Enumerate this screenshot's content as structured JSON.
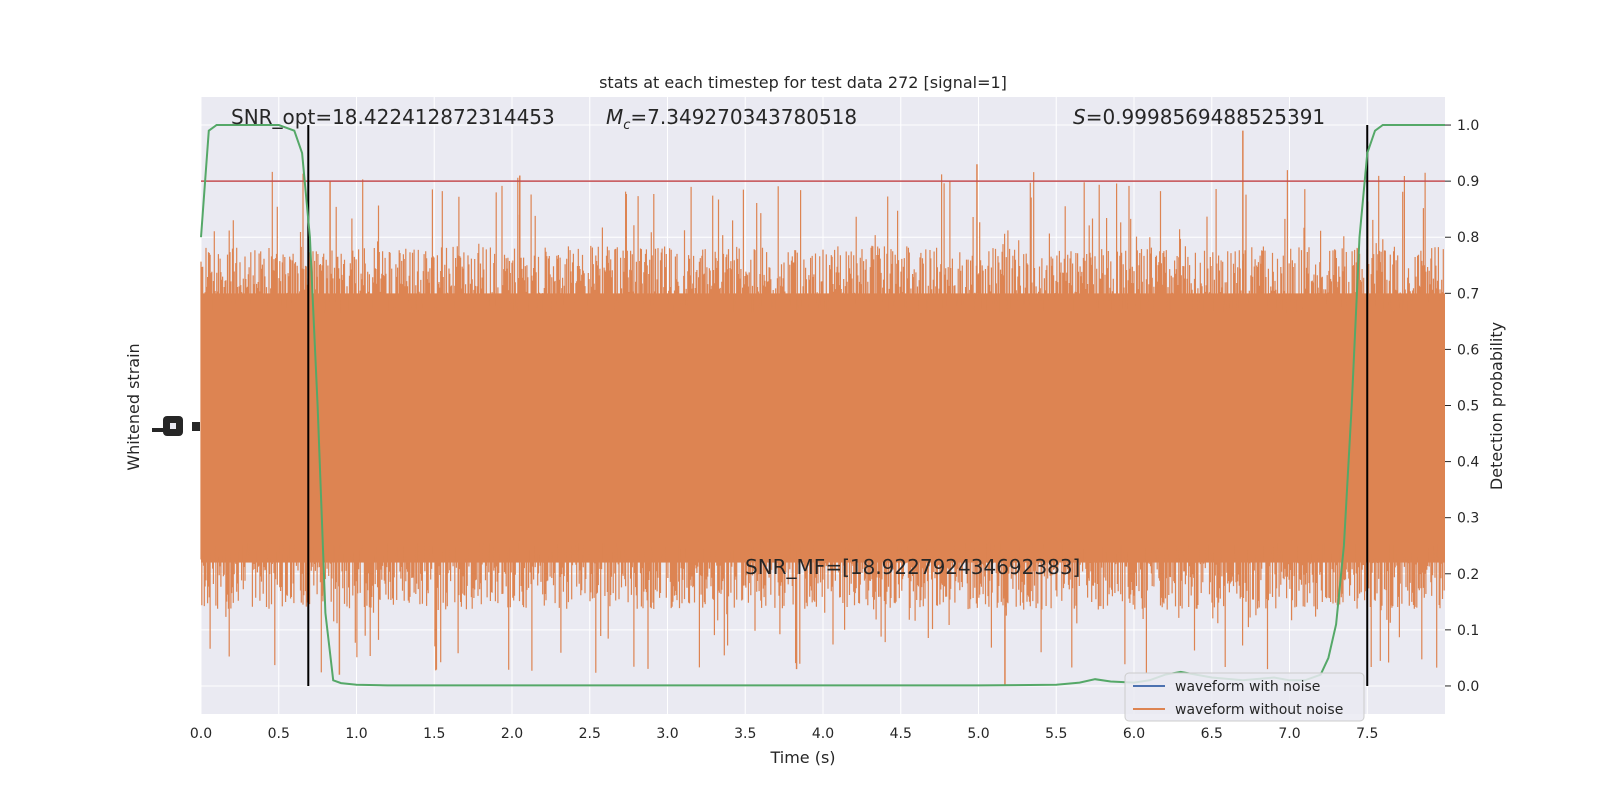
{
  "chart_data": {
    "type": "line",
    "title": "stats at each timestep for test data 272 [signal=1]",
    "xlabel": "Time (s)",
    "ylabel_left": "Whitened strain",
    "ylabel_right": "Detection probability",
    "xlim": [
      0.0,
      8.0
    ],
    "xticks": [
      0.0,
      0.5,
      1.0,
      1.5,
      2.0,
      2.5,
      3.0,
      3.5,
      4.0,
      4.5,
      5.0,
      5.5,
      6.0,
      6.5,
      7.0,
      7.5
    ],
    "xtick_labels": [
      "0.0",
      "0.5",
      "1.0",
      "1.5",
      "2.0",
      "2.5",
      "3.0",
      "3.5",
      "4.0",
      "4.5",
      "5.0",
      "5.5",
      "6.0",
      "6.5",
      "7.0",
      "7.5"
    ],
    "ylim_right": [
      -0.05,
      1.05
    ],
    "yticks_right": [
      0.0,
      0.1,
      0.2,
      0.3,
      0.4,
      0.5,
      0.6,
      0.7,
      0.8,
      0.9,
      1.0
    ],
    "ytick_labels_right": [
      "0.0",
      "0.1",
      "0.2",
      "0.3",
      "0.4",
      "0.5",
      "0.6",
      "0.7",
      "0.8",
      "0.9",
      "1.0"
    ],
    "grid": true,
    "threshold": {
      "value": 0.9,
      "color": "#c44e52"
    },
    "vertical_markers": [
      {
        "x": 0.69,
        "color": "#000000"
      },
      {
        "x": 7.5,
        "color": "#000000"
      }
    ],
    "annotations": {
      "snr_opt": "SNR_opt=18.422412872314453",
      "mc_symbol": "M",
      "mc_sub": "c",
      "mc_value": "=7.349270343780518",
      "s_symbol": "S",
      "s_value": "=0.9998569488525391",
      "snr_mf": "SNR_MF=[18.922792434692383]"
    },
    "series": [
      {
        "name": "waveform with noise",
        "color": "#4c72b0",
        "style": "noise-band"
      },
      {
        "name": "waveform without noise",
        "color": "#dd8452",
        "style": "noise-band",
        "band_center": 0.46,
        "band_half_width": 0.24,
        "spike_max": 0.99,
        "spike_min": 0.0
      },
      {
        "name": "detection probability",
        "color": "#55a868",
        "style": "line",
        "x": [
          0.0,
          0.05,
          0.1,
          0.2,
          0.3,
          0.4,
          0.5,
          0.6,
          0.65,
          0.7,
          0.75,
          0.8,
          0.85,
          0.9,
          1.0,
          1.2,
          1.5,
          2.0,
          2.5,
          3.0,
          3.5,
          4.0,
          4.5,
          5.0,
          5.5,
          5.65,
          5.75,
          5.85,
          6.0,
          6.1,
          6.2,
          6.3,
          6.5,
          6.7,
          6.9,
          7.0,
          7.1,
          7.2,
          7.25,
          7.3,
          7.35,
          7.4,
          7.45,
          7.5,
          7.55,
          7.6,
          7.65,
          7.7,
          7.8,
          7.9,
          8.0
        ],
        "y": [
          0.8,
          0.99,
          1.0,
          1.0,
          1.0,
          1.0,
          1.0,
          0.99,
          0.95,
          0.8,
          0.5,
          0.13,
          0.01,
          0.005,
          0.002,
          0.001,
          0.001,
          0.001,
          0.001,
          0.001,
          0.001,
          0.001,
          0.001,
          0.001,
          0.002,
          0.006,
          0.012,
          0.008,
          0.006,
          0.01,
          0.02,
          0.025,
          0.015,
          0.01,
          0.015,
          0.01,
          0.01,
          0.02,
          0.05,
          0.11,
          0.25,
          0.5,
          0.8,
          0.95,
          0.99,
          1.0,
          1.0,
          1.0,
          1.0,
          1.0,
          1.0
        ]
      }
    ],
    "legend": {
      "position": "lower-right",
      "entries": [
        {
          "label": "waveform with noise",
          "color": "#4c72b0"
        },
        {
          "label": "waveform without noise",
          "color": "#dd8452"
        }
      ]
    }
  }
}
